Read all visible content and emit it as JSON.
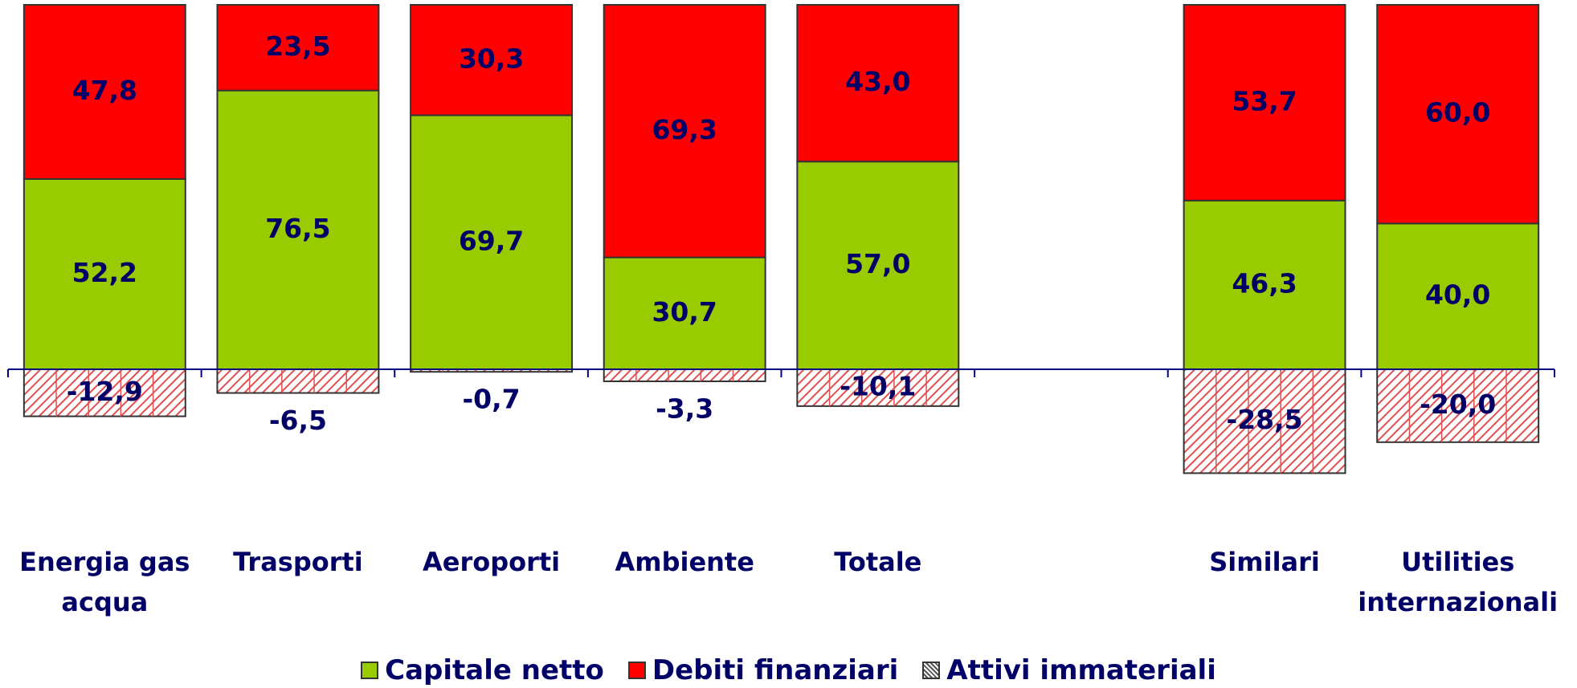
{
  "chart_data": {
    "type": "stacked_bar",
    "categories": [
      "Energia gas acqua",
      "Trasporti",
      "Aeroporti",
      "Ambiente",
      "Totale",
      null,
      "Similari",
      "Utilities internazionali"
    ],
    "series": [
      {
        "name": "Capitale netto",
        "color": "#99cc00",
        "values": [
          52.2,
          76.5,
          69.7,
          30.7,
          57.0,
          null,
          46.3,
          40.0
        ],
        "value_labels": [
          "52,2",
          "76,5",
          "69,7",
          "30,7",
          "57,0",
          null,
          "46,3",
          "40,0"
        ]
      },
      {
        "name": "Debiti finanziari",
        "color": "#ff0000",
        "values": [
          47.8,
          23.5,
          30.3,
          69.3,
          43.0,
          null,
          53.7,
          60.0
        ],
        "value_labels": [
          "47,8",
          "23,5",
          "30,3",
          "69,3",
          "43,0",
          null,
          "53,7",
          "60,0"
        ]
      },
      {
        "name": "Attivi immateriali",
        "color": "#ff0000",
        "pattern": "hatch",
        "values": [
          -12.9,
          -6.5,
          -0.7,
          -3.3,
          -10.1,
          null,
          -28.5,
          -20.0
        ],
        "value_labels": [
          "-12,9",
          "-6,5",
          "-0,7",
          "-3,3",
          "-10,1",
          null,
          "-28,5",
          "-20,0"
        ]
      }
    ],
    "ylim": [
      -40,
      100
    ],
    "legend": "bottom"
  }
}
